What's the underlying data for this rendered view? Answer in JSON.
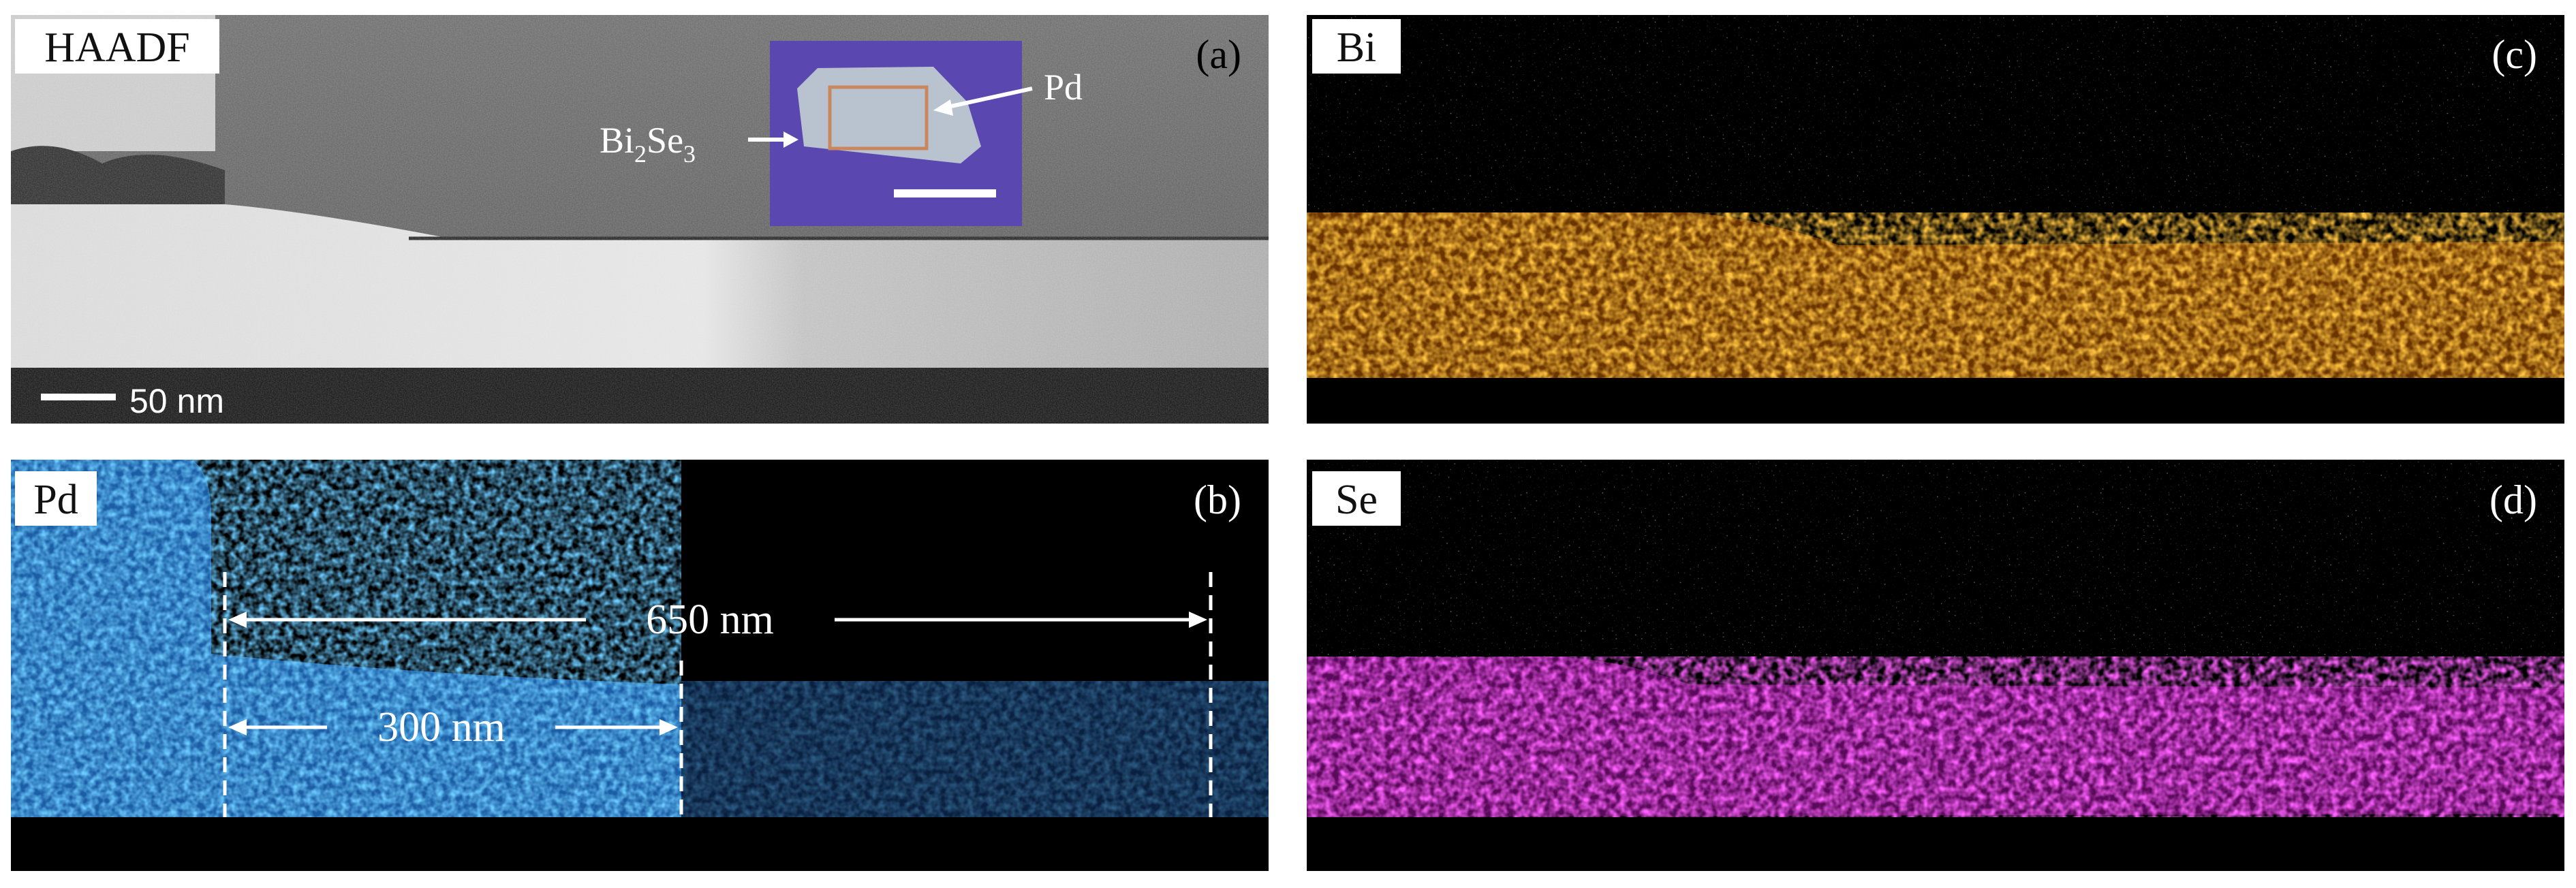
{
  "panels": {
    "a": {
      "label": "HAADF",
      "letter": "(a)",
      "scale_bar": "50 nm",
      "inset": {
        "arrow_label_top": "Pd",
        "arrow_label_left_base": "Bi",
        "arrow_label_left_sub1": "2",
        "arrow_label_left_mid": "Se",
        "arrow_label_left_sub2": "3"
      }
    },
    "b": {
      "label": "Pd",
      "letter": "(b)",
      "annotations": {
        "long_span": "650 nm",
        "short_span": "300 nm"
      }
    },
    "c": {
      "label": "Bi",
      "letter": "(c)"
    },
    "d": {
      "label": "Se",
      "letter": "(d)"
    }
  },
  "colors": {
    "bi_map": "#ff8a10",
    "se_map": "#ff29ff",
    "pd_map": "#2aa4ff",
    "inset_bg": "#5b47b0",
    "background_dark": "#000000"
  }
}
